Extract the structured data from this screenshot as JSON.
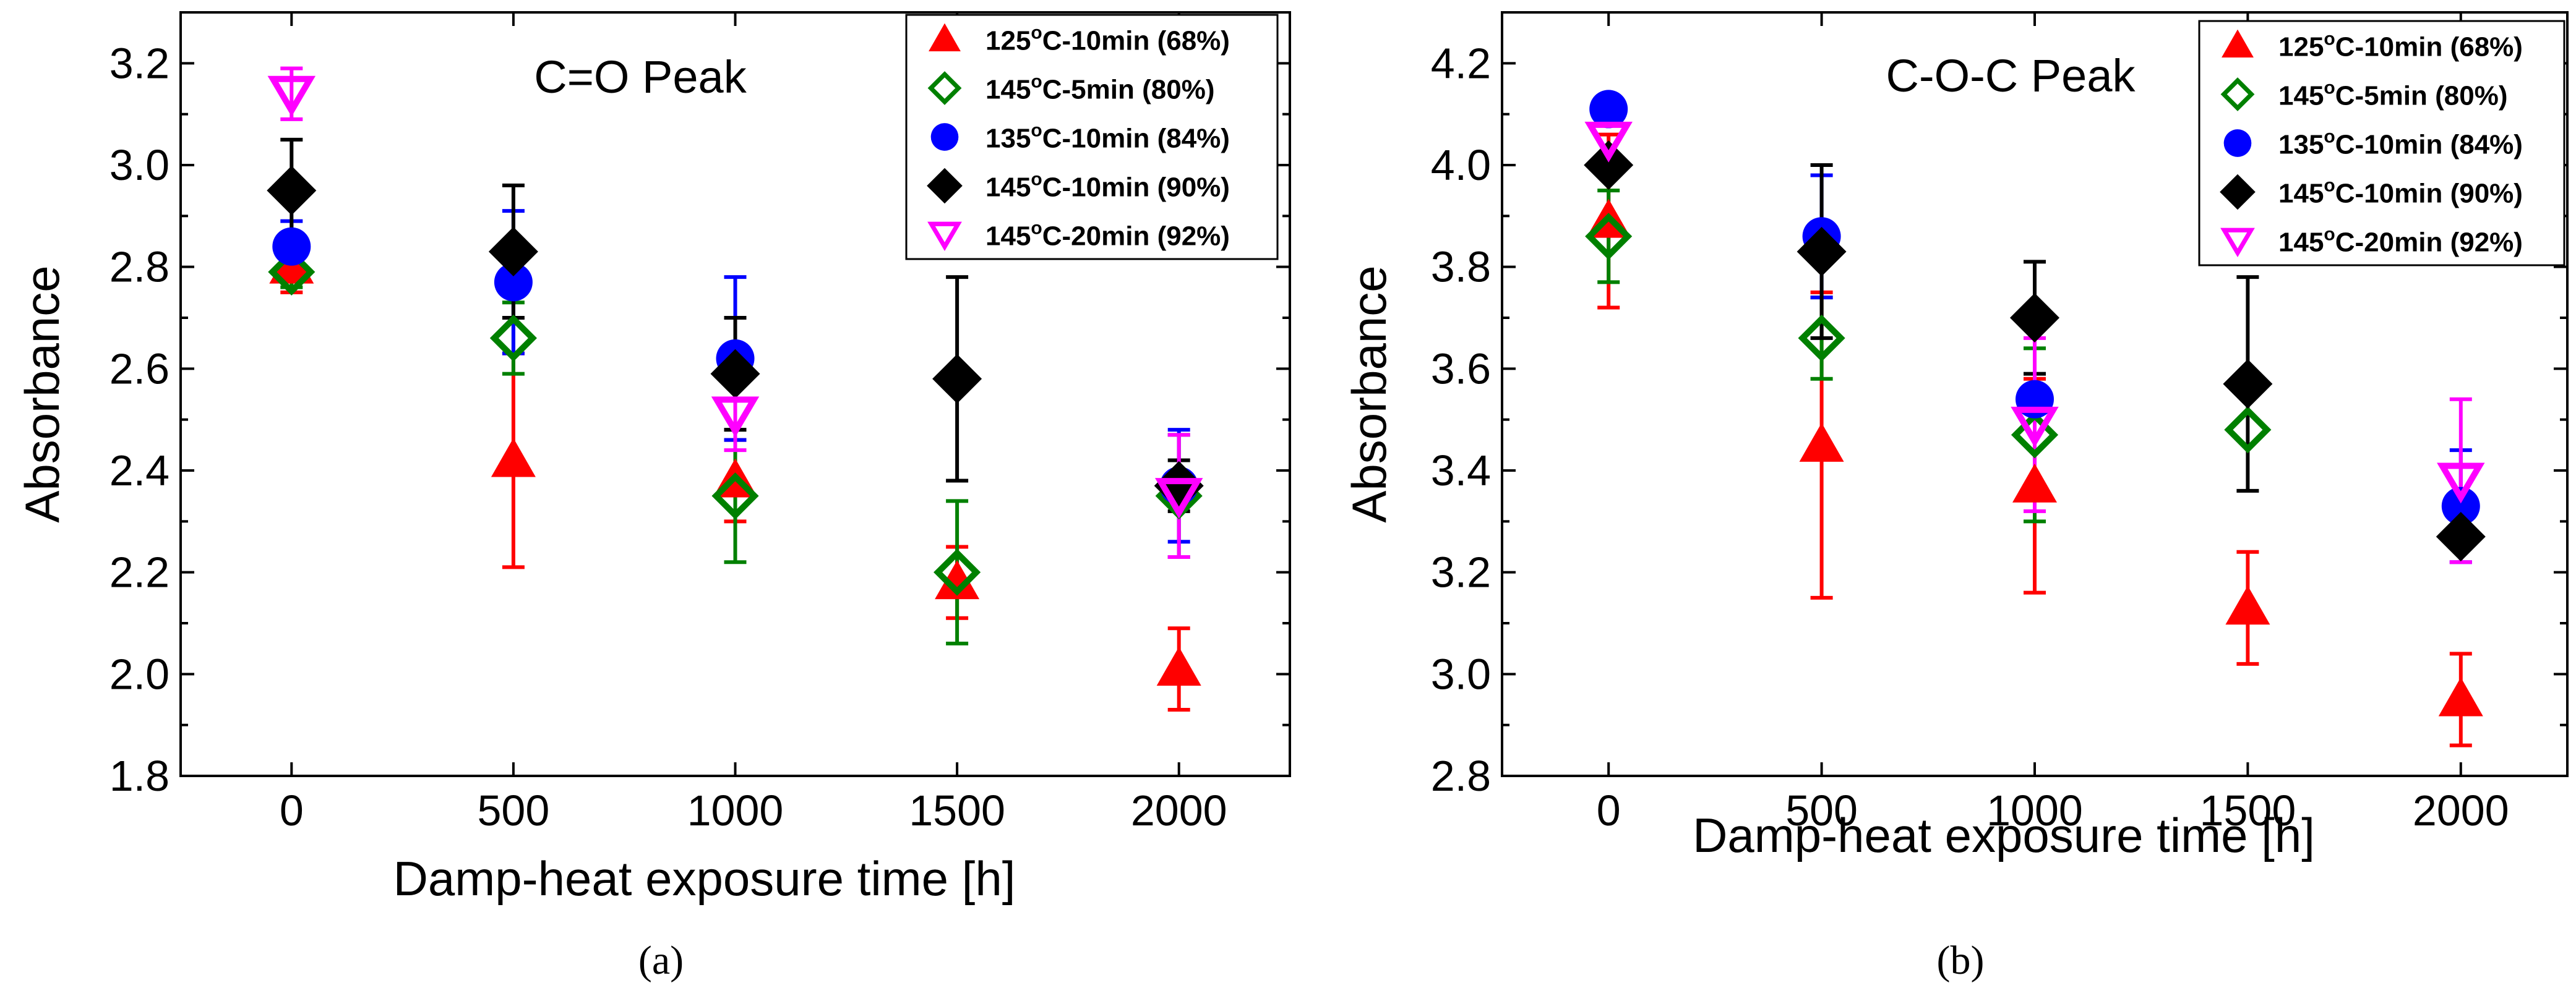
{
  "chart_data": [
    {
      "type": "scatter",
      "panel": "a",
      "caption": "(a)",
      "title": "C=O Peak",
      "xlabel": "Damp-heat exposure time [h]",
      "ylabel": "Absorbance",
      "xlim": [
        -250,
        2250
      ],
      "ylim": [
        1.8,
        3.3
      ],
      "xticks": [
        0,
        500,
        1000,
        1500,
        2000
      ],
      "xtick_labels": [
        "0",
        "500",
        "1000",
        "1500",
        "2000"
      ],
      "yticks": [
        1.8,
        2.0,
        2.2,
        2.4,
        2.6,
        2.8,
        3.0,
        3.2
      ],
      "ytick_labels": [
        "1.8",
        "2.0",
        "2.2",
        "2.4",
        "2.6",
        "2.8",
        "3.0",
        "3.2"
      ],
      "legend_position": "top-right",
      "series": [
        {
          "name": "125°C-10min (68%)",
          "label_base": "125",
          "label_deg": "o",
          "label_rest": "C-10min (68%)",
          "marker": "triangle",
          "color": "#ff0000",
          "x": [
            0,
            500,
            1000,
            1500,
            2000
          ],
          "y": [
            2.8,
            2.42,
            2.38,
            2.18,
            2.01
          ],
          "err": [
            0.05,
            0.21,
            0.08,
            0.07,
            0.08
          ]
        },
        {
          "name": "145°C-5min (80%)",
          "label_base": "145",
          "label_deg": "o",
          "label_rest": "C-5min (80%)",
          "marker": "diamond-open",
          "color": "#008000",
          "x": [
            0,
            500,
            1000,
            1500,
            2000
          ],
          "y": [
            2.79,
            2.66,
            2.35,
            2.2,
            2.35
          ],
          "err": [
            0.03,
            0.07,
            0.13,
            0.14,
            0.12
          ]
        },
        {
          "name": "135°C-10min (84%)",
          "label_base": "135",
          "label_deg": "o",
          "label_rest": "C-10min (84%)",
          "marker": "circle",
          "color": "#0000ff",
          "x": [
            0,
            500,
            1000,
            1500,
            2000
          ],
          "y": [
            2.84,
            2.77,
            2.62,
            null,
            2.37
          ],
          "err": [
            0.05,
            0.14,
            0.16,
            null,
            0.11
          ]
        },
        {
          "name": "145°C-10min (90%)",
          "label_base": "145",
          "label_deg": "o",
          "label_rest": "C-10min (90%)",
          "marker": "diamond",
          "color": "#000000",
          "x": [
            0,
            500,
            1000,
            1500,
            2000
          ],
          "y": [
            2.95,
            2.83,
            2.59,
            2.58,
            2.37
          ],
          "err": [
            0.1,
            0.13,
            0.11,
            0.2,
            0.05
          ]
        },
        {
          "name": "145°C-20min (92%)",
          "label_base": "145",
          "label_deg": "o",
          "label_rest": "C-20min (92%)",
          "marker": "triangle-down-open",
          "color": "#ff00ff",
          "x": [
            0,
            500,
            1000,
            1500,
            2000
          ],
          "y": [
            3.14,
            null,
            2.51,
            null,
            2.35
          ],
          "err": [
            0.05,
            null,
            0.07,
            null,
            0.12
          ]
        }
      ]
    },
    {
      "type": "scatter",
      "panel": "b",
      "caption": "(b)",
      "title": "C-O-C Peak",
      "xlabel": "Damp-heat exposure time [h]",
      "ylabel": "Absorbance",
      "xlim": [
        -250,
        2250
      ],
      "ylim": [
        2.8,
        4.3
      ],
      "xticks": [
        0,
        500,
        1000,
        1500,
        2000
      ],
      "xtick_labels": [
        "0",
        "500",
        "1000",
        "1500",
        "2000"
      ],
      "yticks": [
        2.8,
        3.0,
        3.2,
        3.4,
        3.6,
        3.8,
        4.0,
        4.2
      ],
      "ytick_labels": [
        "2.8",
        "3.0",
        "3.2",
        "3.4",
        "3.6",
        "3.8",
        "4.0",
        "4.2"
      ],
      "legend_position": "top-right",
      "series": [
        {
          "name": "125°C-10min (68%)",
          "label_base": "125",
          "label_deg": "o",
          "label_rest": "C-10min (68%)",
          "marker": "triangle",
          "color": "#ff0000",
          "x": [
            0,
            500,
            1000,
            1500,
            2000
          ],
          "y": [
            3.89,
            3.45,
            3.37,
            3.13,
            2.95
          ],
          "err": [
            0.17,
            0.3,
            0.21,
            0.11,
            0.09
          ]
        },
        {
          "name": "145°C-5min (80%)",
          "label_base": "145",
          "label_deg": "o",
          "label_rest": "C-5min (80%)",
          "marker": "diamond-open",
          "color": "#008000",
          "x": [
            0,
            500,
            1000,
            1500,
            2000
          ],
          "y": [
            3.86,
            3.66,
            3.47,
            3.48,
            null
          ],
          "err": [
            0.09,
            0.08,
            0.17,
            null,
            null
          ]
        },
        {
          "name": "135°C-10min (84%)",
          "label_base": "135",
          "label_deg": "o",
          "label_rest": "C-10min (84%)",
          "marker": "circle",
          "color": "#0000ff",
          "x": [
            0,
            500,
            1000,
            1500,
            2000
          ],
          "y": [
            4.11,
            3.86,
            3.54,
            null,
            3.33
          ],
          "err": [
            null,
            0.12,
            0.17,
            null,
            0.11
          ]
        },
        {
          "name": "145°C-10min (90%)",
          "label_base": "145",
          "label_deg": "o",
          "label_rest": "C-10min (90%)",
          "marker": "diamond",
          "color": "#000000",
          "x": [
            0,
            500,
            1000,
            1500,
            2000
          ],
          "y": [
            4.0,
            3.83,
            3.7,
            3.57,
            3.27
          ],
          "err": [
            null,
            0.17,
            0.11,
            0.21,
            null
          ]
        },
        {
          "name": "145°C-20min (92%)",
          "label_base": "145",
          "label_deg": "o",
          "label_rest": "C-20min (92%)",
          "marker": "triangle-down-open",
          "color": "#ff00ff",
          "x": [
            0,
            500,
            1000,
            1500,
            2000
          ],
          "y": [
            4.05,
            null,
            3.49,
            null,
            3.38
          ],
          "err": [
            null,
            null,
            0.17,
            null,
            0.16
          ]
        }
      ]
    }
  ]
}
